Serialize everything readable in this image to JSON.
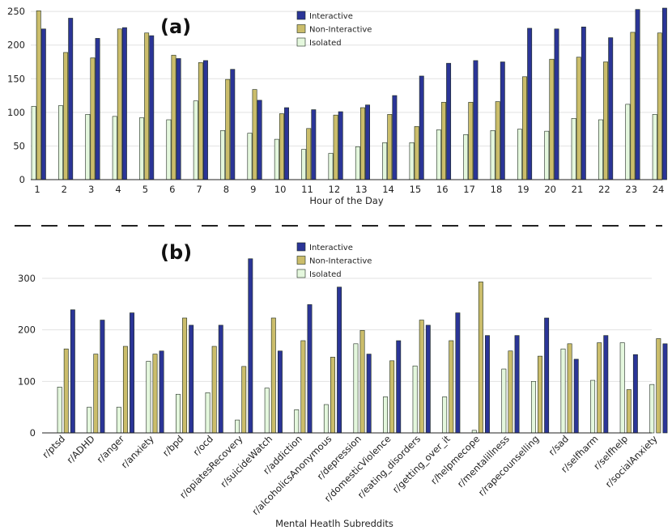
{
  "colors": {
    "interactive": "#2b3597",
    "non_interactive": "#cbbd6b",
    "isolated": "#e4f7dd",
    "outline": "#1d2a1d",
    "grid": "#e2e2e2",
    "divider": "#222222"
  },
  "chart_data": [
    {
      "type": "bar",
      "panel_label": "(a)",
      "xlabel": "Hour of the Day",
      "ylabel": "",
      "ylim": [
        0,
        255
      ],
      "yticks": [
        0,
        50,
        100,
        150,
        200,
        250
      ],
      "grid": true,
      "legend_position": "top-center",
      "categories": [
        "1",
        "2",
        "3",
        "4",
        "5",
        "6",
        "7",
        "8",
        "9",
        "10",
        "11",
        "12",
        "13",
        "14",
        "15",
        "16",
        "17",
        "18",
        "19",
        "20",
        "21",
        "22",
        "23",
        "24"
      ],
      "series": [
        {
          "name": "Isolated",
          "values": [
            109,
            110,
            97,
            94,
            92,
            89,
            117,
            73,
            69,
            60,
            45,
            39,
            49,
            55,
            55,
            74,
            67,
            73,
            75,
            72,
            91,
            89,
            112,
            97
          ]
        },
        {
          "name": "Non-Interactive",
          "values": [
            251,
            189,
            181,
            224,
            218,
            185,
            174,
            149,
            134,
            98,
            76,
            96,
            107,
            97,
            79,
            115,
            115,
            116,
            153,
            179,
            182,
            175,
            219,
            218
          ]
        },
        {
          "name": "Interactive",
          "values": [
            224,
            240,
            210,
            226,
            214,
            180,
            177,
            164,
            118,
            107,
            104,
            101,
            111,
            125,
            154,
            173,
            177,
            175,
            225,
            224,
            227,
            211,
            253,
            255
          ]
        }
      ]
    },
    {
      "type": "bar",
      "panel_label": "(b)",
      "xlabel": "Mental Heatlh Subreddits",
      "ylabel": "",
      "ylim": [
        0,
        345
      ],
      "yticks": [
        0,
        100,
        200,
        300
      ],
      "grid": true,
      "legend_position": "top-center",
      "categories": [
        "r/ptsd",
        "r/ADHD",
        "r/anger",
        "r/anxiety",
        "r/bpd",
        "r/ocd",
        "r/opiatesRecovery",
        "r/suicideWatch",
        "r/addiction",
        "r/alcoholicsAnonymous",
        "r/depression",
        "r/domesticViolence",
        "r/eating_disorders",
        "r/getting_over_it",
        "r/helpmecope",
        "r/mentalillness",
        "r/rapecounselling",
        "r/sad",
        "r/selfharm",
        "r/selfhelp",
        "r/socialAnxiety"
      ],
      "series": [
        {
          "name": "Isolated",
          "values": [
            89,
            50,
            50,
            139,
            75,
            78,
            25,
            87,
            45,
            55,
            173,
            70,
            130,
            70,
            5,
            124,
            100,
            163,
            102,
            175,
            94
          ]
        },
        {
          "name": "Non-Interactive",
          "values": [
            163,
            153,
            168,
            153,
            223,
            168,
            129,
            223,
            179,
            147,
            199,
            140,
            219,
            179,
            293,
            159,
            149,
            173,
            175,
            84,
            183
          ]
        },
        {
          "name": "Interactive",
          "values": [
            239,
            219,
            233,
            159,
            209,
            209,
            338,
            159,
            249,
            283,
            153,
            179,
            209,
            233,
            189,
            189,
            223,
            143,
            189,
            152,
            173
          ]
        }
      ]
    }
  ]
}
